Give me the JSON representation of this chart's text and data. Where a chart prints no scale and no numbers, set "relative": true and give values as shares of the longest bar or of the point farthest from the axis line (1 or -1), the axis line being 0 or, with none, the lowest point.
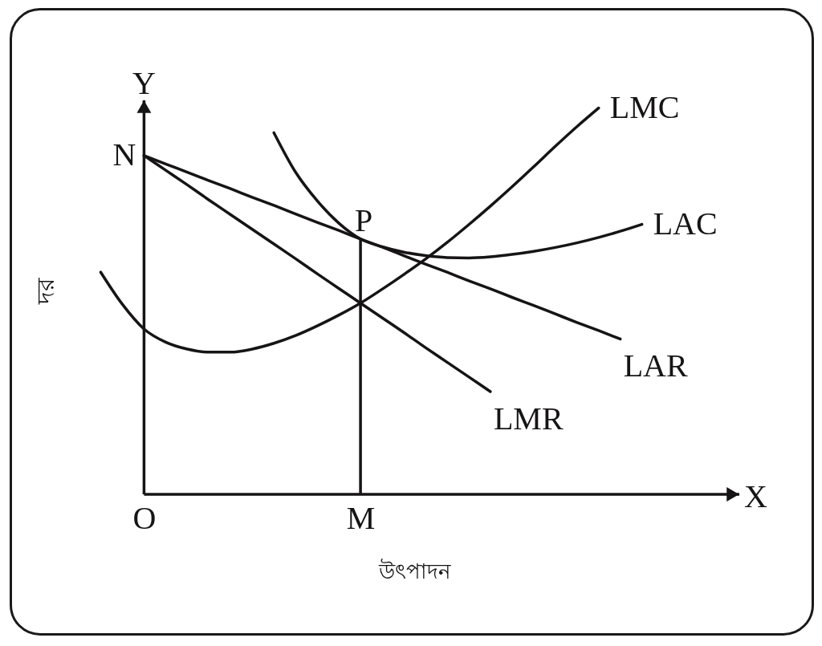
{
  "chart_data": {
    "type": "line",
    "relative": true,
    "xlabel": "উৎপাদন",
    "ylabel": "দর",
    "categories": [
      null,
      null,
      "O",
      null,
      null,
      null,
      null,
      null,
      null,
      null,
      null,
      null,
      "M",
      null,
      null,
      null,
      null,
      null,
      null,
      null,
      null,
      null,
      null,
      null,
      null,
      null,
      null,
      null,
      null,
      null
    ],
    "series": [
      {
        "name": "LMC",
        "color": "#161414",
        "values": [
          0.575,
          0.492,
          0.428,
          0.394,
          0.376,
          0.368,
          0.368,
          0.376,
          0.391,
          0.411,
          0.436,
          0.464,
          0.495,
          0.531,
          0.569,
          0.609,
          0.652,
          0.698,
          0.746,
          0.796,
          0.848,
          0.901,
          0.952,
          1,
          null,
          null,
          null,
          null,
          null,
          null
        ]
      },
      {
        "name": "LAC",
        "color": "#161414",
        "values": [
          null,
          null,
          null,
          null,
          null,
          null,
          null,
          null,
          0.936,
          0.834,
          0.76,
          0.702,
          0.661,
          0.641,
          0.627,
          0.618,
          0.613,
          0.612,
          0.615,
          0.621,
          0.629,
          0.639,
          0.651,
          0.665,
          0.681,
          0.699,
          null,
          null,
          null,
          null
        ]
      },
      {
        "name": "LAR",
        "color": "#161414",
        "values": [
          null,
          null,
          0.877,
          0.855,
          0.834,
          0.812,
          0.791,
          0.769,
          0.748,
          0.726,
          0.704,
          0.683,
          0.661,
          0.64,
          0.618,
          0.596,
          0.575,
          0.553,
          0.532,
          0.51,
          0.489,
          0.467,
          0.445,
          0.424,
          0.402,
          null,
          null,
          null,
          null,
          null
        ]
      },
      {
        "name": "LMR",
        "color": "#161414",
        "values": [
          null,
          null,
          0.877,
          0.839,
          0.801,
          0.762,
          0.724,
          0.686,
          0.648,
          0.61,
          0.571,
          0.533,
          0.495,
          0.457,
          0.419,
          0.38,
          0.342,
          0.304,
          0.266,
          null,
          null,
          null,
          null,
          null,
          null,
          null,
          null,
          null,
          null,
          null
        ]
      },
      {
        "type": "bar",
        "color": "#161414",
        "values": [
          null,
          null,
          null,
          null,
          null,
          null,
          null,
          null,
          null,
          null,
          null,
          null,
          0.661,
          null,
          null,
          null,
          null,
          null,
          null,
          null,
          null,
          null,
          null,
          null,
          null,
          null,
          null,
          null,
          null,
          null
        ]
      }
    ],
    "annotations": [
      {
        "text": "N",
        "x": "O",
        "y": 0.877
      },
      {
        "text": "P",
        "x": "M",
        "y": 0.661
      },
      "Y",
      "X"
    ]
  }
}
